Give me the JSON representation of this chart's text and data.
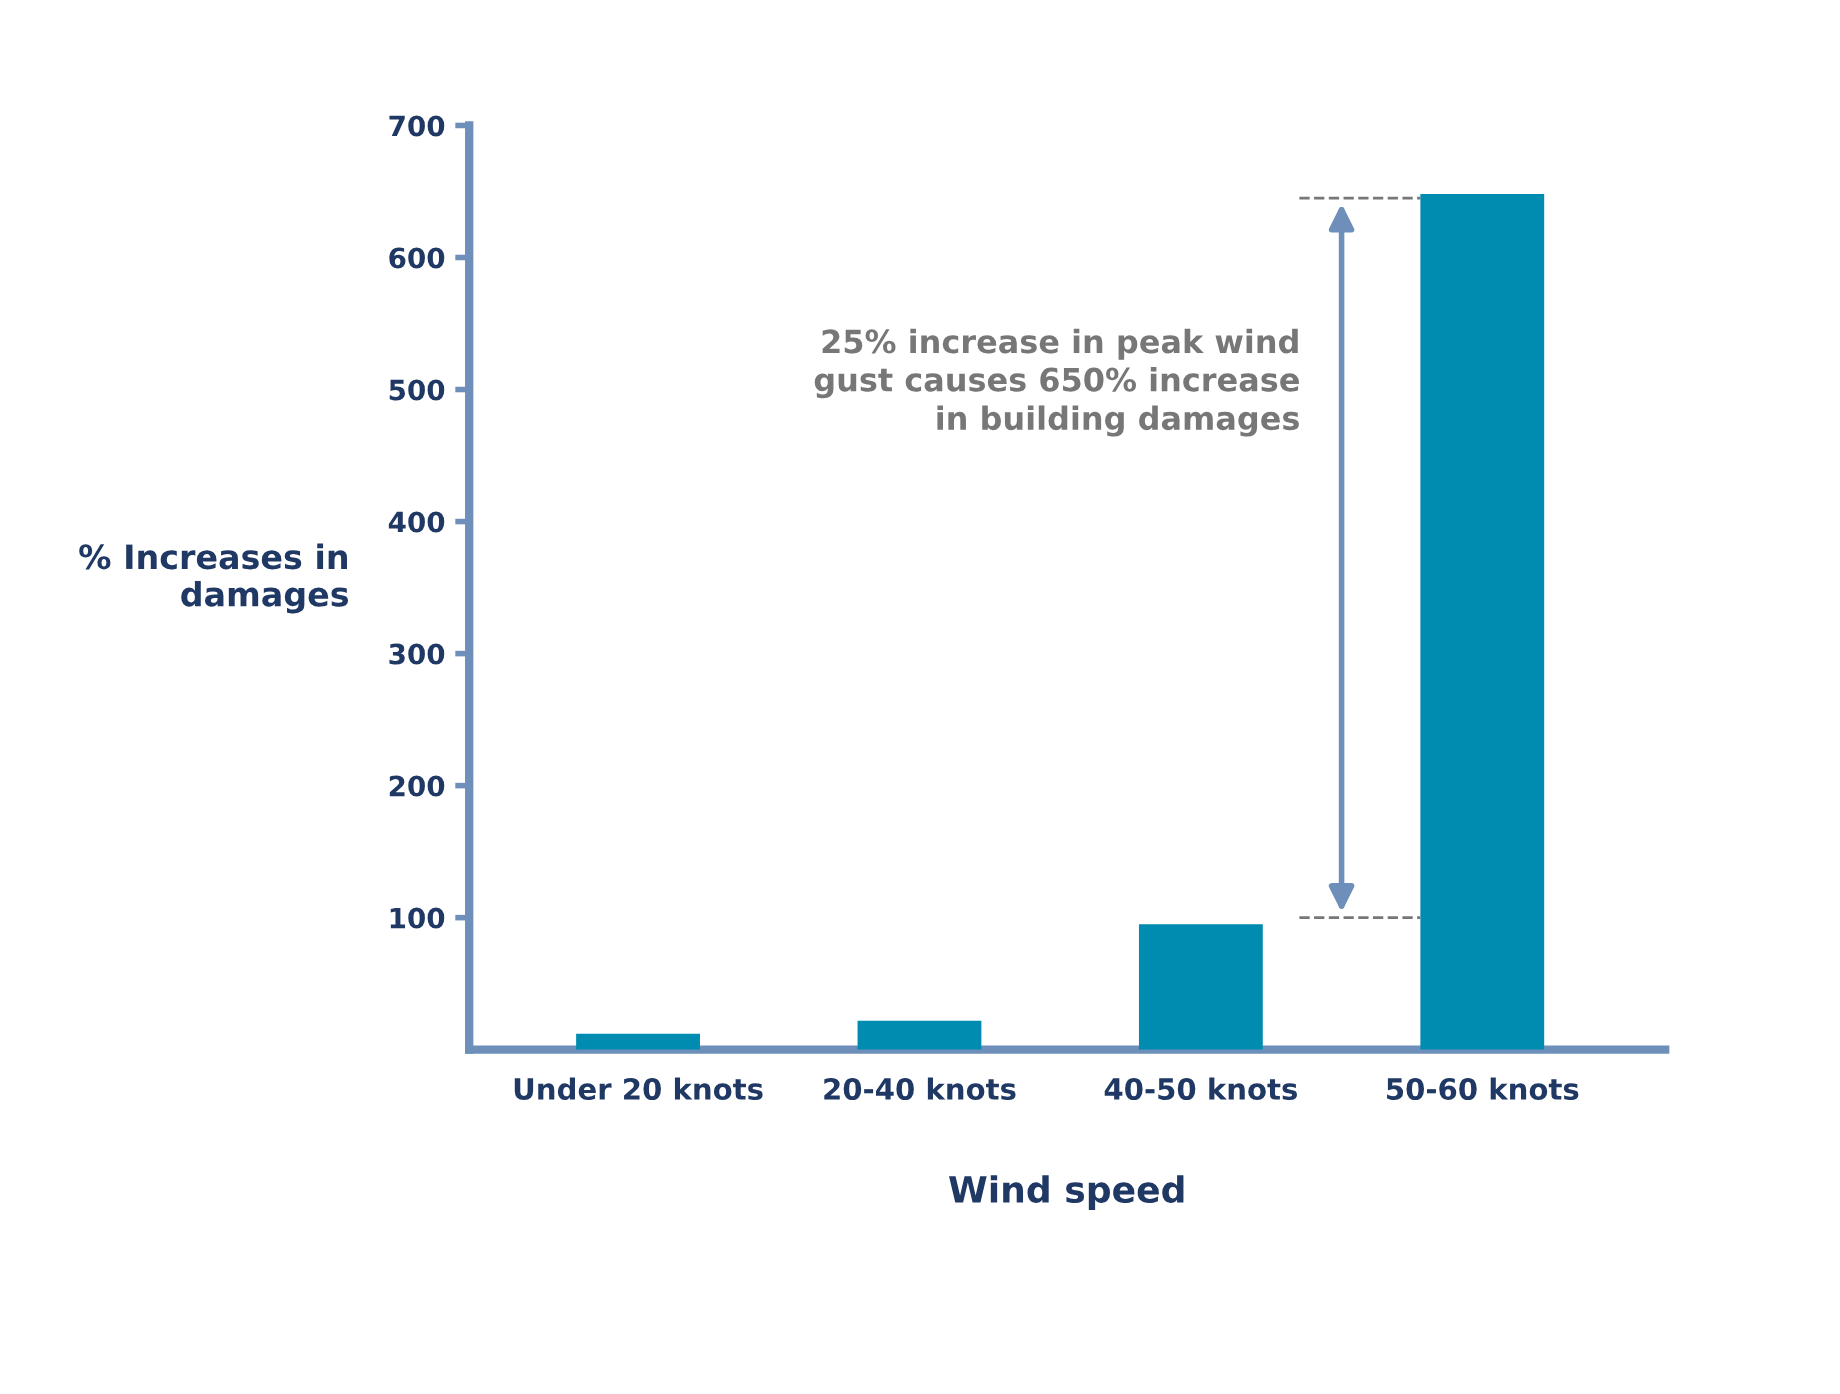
{
  "chart_data": {
    "type": "bar",
    "xlabel": "Wind speed",
    "ylabel": "% Increases in\ndamages",
    "categories": [
      "Under 20 knots",
      "20-40 knots",
      "40-50 knots",
      "50-60 knots"
    ],
    "values": [
      12,
      22,
      95,
      648
    ],
    "color": "#008bb0",
    "ylim": [
      0,
      700
    ],
    "yticks": [
      100,
      200,
      300,
      400,
      500,
      600,
      700
    ],
    "grid": false,
    "ref_lines": [
      {
        "axis": "y",
        "value": 100,
        "line_style": "dashed",
        "color": "#777777"
      },
      {
        "axis": "y",
        "value": 645,
        "line_style": "dashed",
        "color": "#777777"
      }
    ],
    "annotations": [
      "25% increase in peak wind\ngust causes 650% increase\nin building damages"
    ]
  }
}
